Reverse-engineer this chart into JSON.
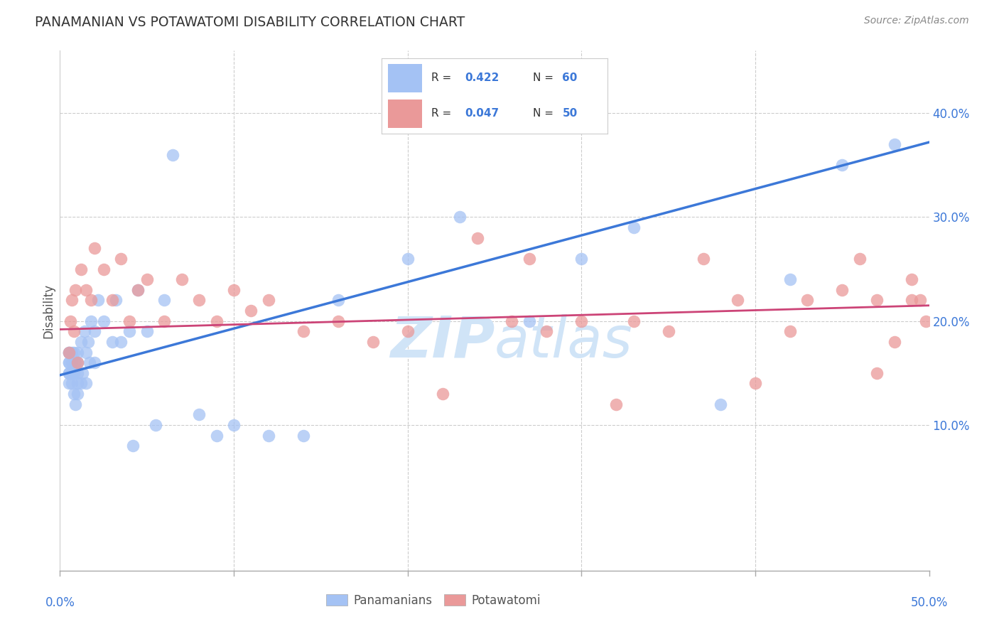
{
  "title": "PANAMANIAN VS POTAWATOMI DISABILITY CORRELATION CHART",
  "source": "Source: ZipAtlas.com",
  "ylabel": "Disability",
  "xlim": [
    0.0,
    0.5
  ],
  "ylim": [
    -0.04,
    0.46
  ],
  "yticks": [
    0.1,
    0.2,
    0.3,
    0.4
  ],
  "ytick_labels": [
    "10.0%",
    "20.0%",
    "30.0%",
    "40.0%"
  ],
  "xticks": [
    0.0,
    0.1,
    0.2,
    0.3,
    0.4,
    0.5
  ],
  "blue_R": 0.422,
  "blue_N": 60,
  "pink_R": 0.047,
  "pink_N": 50,
  "blue_color": "#a4c2f4",
  "pink_color": "#ea9999",
  "blue_line_color": "#3c78d8",
  "pink_line_color": "#cc4477",
  "axis_label_color": "#3c78d8",
  "background_color": "#ffffff",
  "grid_color": "#cccccc",
  "title_color": "#333333",
  "watermark_color": "#d0e4f7",
  "blue_scatter_x": [
    0.005,
    0.005,
    0.005,
    0.005,
    0.005,
    0.005,
    0.005,
    0.007,
    0.007,
    0.007,
    0.007,
    0.007,
    0.008,
    0.008,
    0.008,
    0.009,
    0.009,
    0.01,
    0.01,
    0.01,
    0.01,
    0.01,
    0.012,
    0.012,
    0.013,
    0.014,
    0.015,
    0.015,
    0.016,
    0.017,
    0.018,
    0.02,
    0.02,
    0.022,
    0.025,
    0.03,
    0.032,
    0.035,
    0.04,
    0.042,
    0.045,
    0.05,
    0.055,
    0.06,
    0.065,
    0.08,
    0.09,
    0.1,
    0.12,
    0.14,
    0.16,
    0.2,
    0.23,
    0.27,
    0.3,
    0.33,
    0.38,
    0.42,
    0.45,
    0.48
  ],
  "blue_scatter_y": [
    0.14,
    0.15,
    0.15,
    0.16,
    0.16,
    0.17,
    0.17,
    0.14,
    0.15,
    0.15,
    0.16,
    0.17,
    0.13,
    0.15,
    0.17,
    0.12,
    0.16,
    0.13,
    0.14,
    0.15,
    0.16,
    0.17,
    0.14,
    0.18,
    0.15,
    0.19,
    0.14,
    0.17,
    0.18,
    0.16,
    0.2,
    0.16,
    0.19,
    0.22,
    0.2,
    0.18,
    0.22,
    0.18,
    0.19,
    0.08,
    0.23,
    0.19,
    0.1,
    0.22,
    0.36,
    0.11,
    0.09,
    0.1,
    0.09,
    0.09,
    0.22,
    0.26,
    0.3,
    0.2,
    0.26,
    0.29,
    0.12,
    0.24,
    0.35,
    0.37
  ],
  "pink_scatter_x": [
    0.005,
    0.006,
    0.007,
    0.008,
    0.009,
    0.01,
    0.012,
    0.015,
    0.018,
    0.02,
    0.025,
    0.03,
    0.035,
    0.04,
    0.045,
    0.05,
    0.06,
    0.07,
    0.08,
    0.09,
    0.1,
    0.11,
    0.12,
    0.14,
    0.16,
    0.18,
    0.2,
    0.22,
    0.24,
    0.26,
    0.27,
    0.28,
    0.3,
    0.32,
    0.33,
    0.35,
    0.37,
    0.39,
    0.4,
    0.42,
    0.43,
    0.45,
    0.46,
    0.47,
    0.47,
    0.48,
    0.49,
    0.49,
    0.495,
    0.498
  ],
  "pink_scatter_y": [
    0.17,
    0.2,
    0.22,
    0.19,
    0.23,
    0.16,
    0.25,
    0.23,
    0.22,
    0.27,
    0.25,
    0.22,
    0.26,
    0.2,
    0.23,
    0.24,
    0.2,
    0.24,
    0.22,
    0.2,
    0.23,
    0.21,
    0.22,
    0.19,
    0.2,
    0.18,
    0.19,
    0.13,
    0.28,
    0.2,
    0.26,
    0.19,
    0.2,
    0.12,
    0.2,
    0.19,
    0.26,
    0.22,
    0.14,
    0.19,
    0.22,
    0.23,
    0.26,
    0.15,
    0.22,
    0.18,
    0.22,
    0.24,
    0.22,
    0.2
  ]
}
